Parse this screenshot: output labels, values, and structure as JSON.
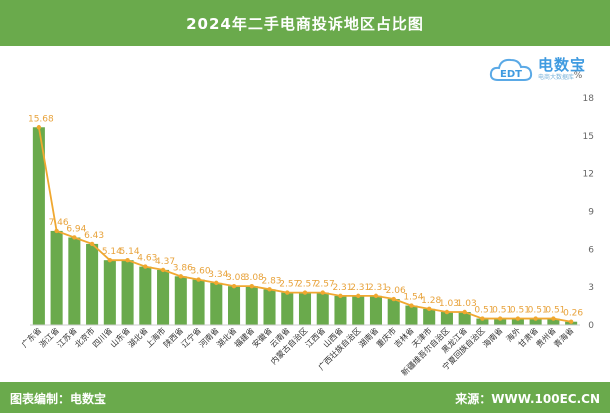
{
  "title": "2024年二手电商投诉地区占比图",
  "footer": {
    "left": "图表编制：电数宝",
    "right": "来源：WWW.100EC.CN"
  },
  "logo": {
    "brand": "电数宝",
    "sub": "电商大数据库",
    "mark": "EDT",
    "percent": "%"
  },
  "colors": {
    "header": "#6aaa4c",
    "bar": "#6aaa4c",
    "line": "#f0a830",
    "label": "#e8a33c"
  },
  "chart_data": {
    "type": "bar",
    "title": "2024年二手电商投诉地区占比图",
    "ylim": [
      0,
      18
    ],
    "yticks": [
      0,
      3,
      6,
      9,
      12,
      15,
      18
    ],
    "ylabel_right": "%",
    "grid": false,
    "categories": [
      "广东省",
      "浙江省",
      "江苏省",
      "北京市",
      "四川省",
      "山东省",
      "湖北省",
      "上海市",
      "陕西省",
      "辽宁省",
      "河南省",
      "湖北省",
      "福建省",
      "安徽省",
      "云南省",
      "内蒙古自治区",
      "江西省",
      "山西省",
      "广西壮族自治区",
      "湖南省",
      "重庆市",
      "吉林省",
      "天津市",
      "新疆维吾尔自治区",
      "黑龙江省",
      "宁夏回族自治区",
      "海南省",
      "海外",
      "甘肃省",
      "贵州省",
      "青海省"
    ],
    "values": [
      15.68,
      7.46,
      6.94,
      6.43,
      5.14,
      5.14,
      4.63,
      4.37,
      3.86,
      3.6,
      3.34,
      3.08,
      3.08,
      2.83,
      2.57,
      2.57,
      2.57,
      2.31,
      2.31,
      2.31,
      2.06,
      1.54,
      1.28,
      1.03,
      1.03,
      0.51,
      0.51,
      0.51,
      0.51,
      0.51,
      0.26
    ],
    "value_labels": [
      "15.68",
      "7.46",
      "6.94",
      "6.43",
      "5.14",
      "5.14",
      "4.63",
      "4.37",
      "3.86",
      "3.60",
      "3.34",
      "3.08",
      "3.08",
      "2.83",
      "2.57",
      "2.57",
      "2.57",
      "2.31",
      "2.31",
      "2.31",
      "2.06",
      "1.54",
      "1.28",
      "1.03",
      "1.03",
      "0.51",
      "0.51",
      "0.51",
      "0.51",
      "0.51",
      "0.26"
    ]
  }
}
